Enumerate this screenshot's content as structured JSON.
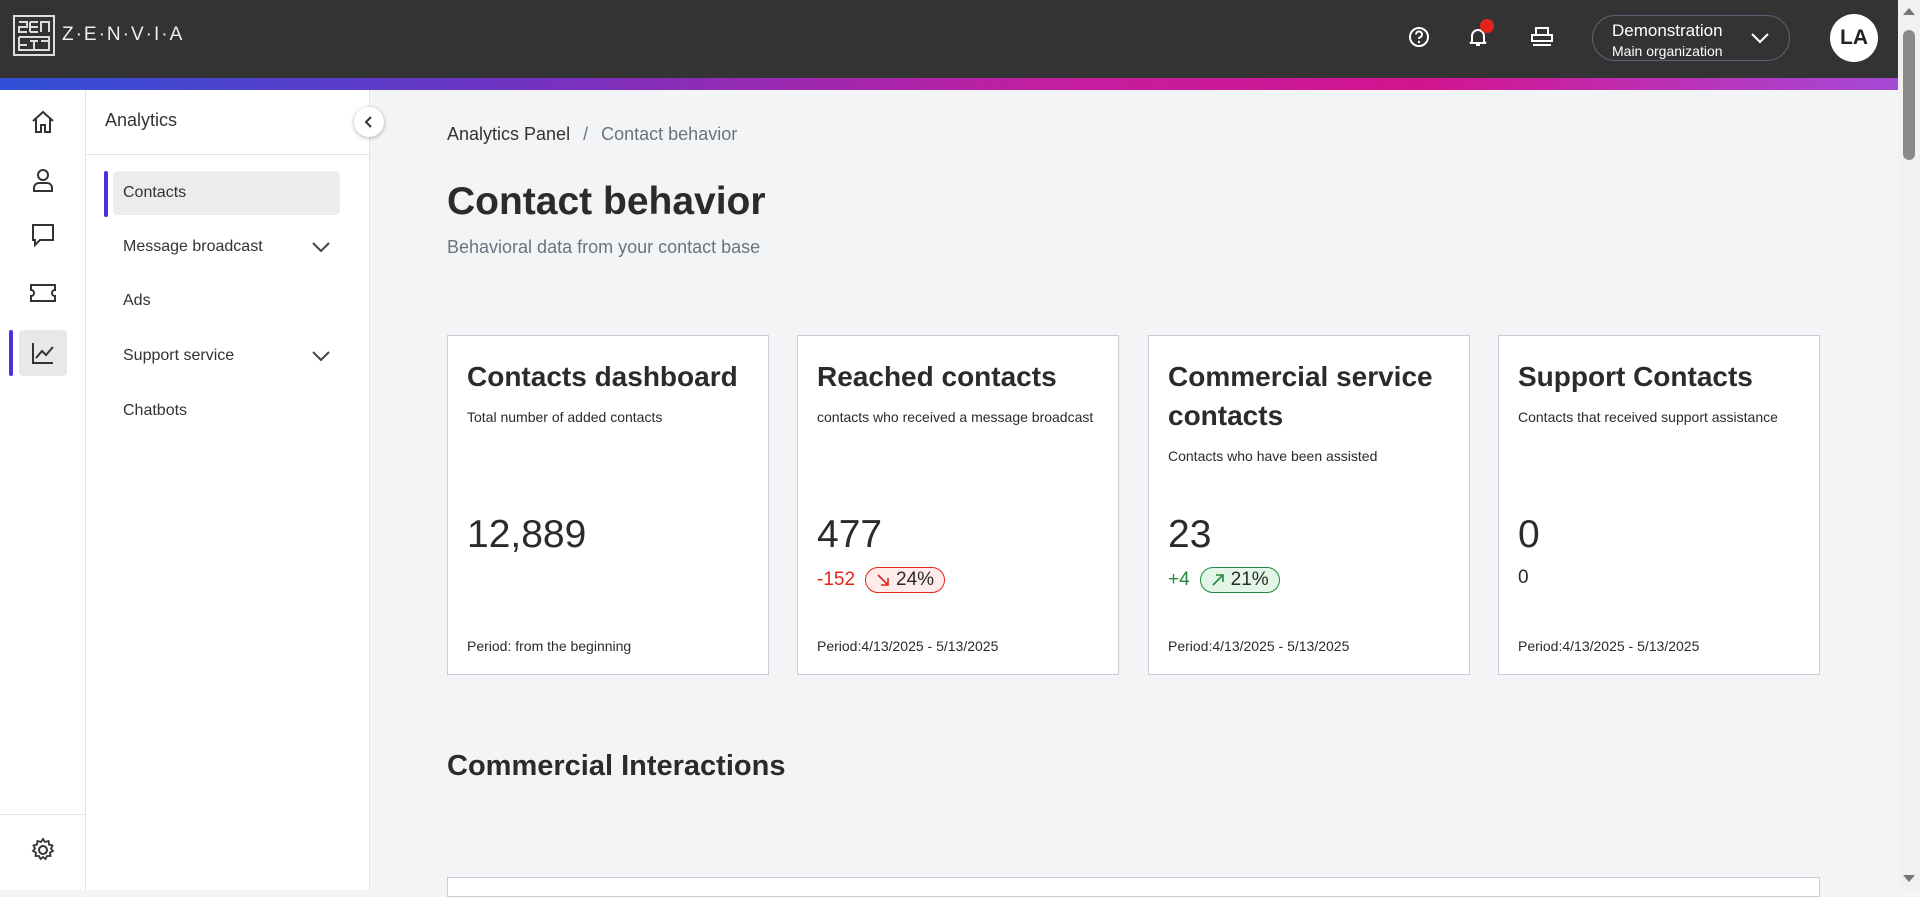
{
  "header": {
    "brand": "Z·E·N·V·I·A",
    "org_name": "Demonstration",
    "org_sub": "Main organization",
    "avatar": "LA",
    "icons": [
      "help-icon",
      "bell-icon",
      "printer-icon"
    ],
    "notification_dot_color": "#e1251b"
  },
  "rail": {
    "items": [
      "home",
      "contacts",
      "chat",
      "ticket",
      "analytics"
    ],
    "footer": "settings"
  },
  "sidebar": {
    "title": "Analytics",
    "items": [
      {
        "label": "Contacts",
        "active": true
      },
      {
        "label": "Message broadcast",
        "expandable": true
      },
      {
        "label": "Ads"
      },
      {
        "label": "Support service",
        "expandable": true
      },
      {
        "label": "Chatbots"
      }
    ]
  },
  "breadcrumb": {
    "root": "Analytics Panel",
    "sep": "/",
    "current": "Contact behavior"
  },
  "page": {
    "title": "Contact behavior",
    "subtitle": "Behavioral data from your contact base",
    "section": "Commercial Interactions"
  },
  "cards": [
    {
      "title": "Contacts dashboard",
      "desc": "Total number of added contacts",
      "value": "12,889",
      "period": "Period: from the beginning"
    },
    {
      "title": "Reached contacts",
      "desc": "contacts who received a message broadcast",
      "value": "477",
      "delta": "-152",
      "pct": "24%",
      "trend": "down",
      "period": "Period:4/13/2025 - 5/13/2025"
    },
    {
      "title": "Commercial service contacts",
      "desc": "Contacts who have been assisted",
      "value": "23",
      "delta": "+4",
      "pct": "21%",
      "trend": "up",
      "period": "Period:4/13/2025 - 5/13/2025"
    },
    {
      "title": "Support Contacts",
      "desc": "Contacts that received support assistance",
      "value": "0",
      "delta": "0",
      "period": "Period:4/13/2025 - 5/13/2025"
    }
  ],
  "colors": {
    "header": "#333333",
    "negative": "#e1251b",
    "positive": "#1f8a3b",
    "accent": "#4f2ee0"
  }
}
